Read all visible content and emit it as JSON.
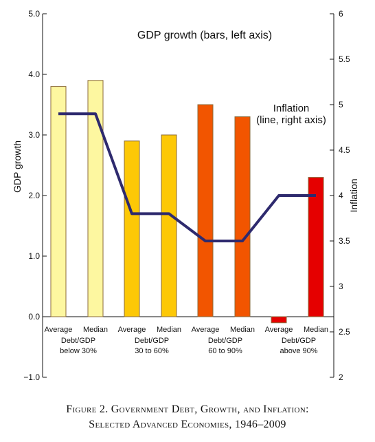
{
  "chart_data": {
    "type": "bar",
    "title": "GDP growth (bars, left axis)",
    "line_label_1": "Inflation",
    "line_label_2": "(line, right axis)",
    "ylabel": "GDP growth",
    "ylabel_right": "Inflation",
    "ylim": [
      -1.0,
      5.0
    ],
    "ylim_right": [
      2,
      6
    ],
    "y_ticks": [
      "5.0",
      "4.0",
      "3.0",
      "2.0",
      "1.0",
      "0.0",
      "−1.0"
    ],
    "y_ticks_right": [
      "6",
      "5.5",
      "5",
      "4.5",
      "4",
      "3.5",
      "3",
      "2.5",
      "2"
    ],
    "categories": [
      "Average",
      "Median",
      "Average",
      "Median",
      "Average",
      "Median",
      "Average",
      "Median"
    ],
    "groups": [
      {
        "line1": "Debt/GDP",
        "line2": "below 30%"
      },
      {
        "line1": "Debt/GDP",
        "line2": "30 to 60%"
      },
      {
        "line1": "Debt/GDP",
        "line2": "60 to 90%"
      },
      {
        "line1": "Debt/GDP",
        "line2": "above 90%"
      }
    ],
    "series": [
      {
        "type": "bar",
        "values": [
          3.8,
          3.9,
          2.9,
          3.0,
          3.5,
          3.3,
          -0.1,
          2.3
        ]
      },
      {
        "type": "line",
        "values": [
          4.9,
          4.9,
          3.8,
          3.8,
          3.5,
          3.5,
          4.0,
          4.0
        ]
      }
    ],
    "bar_colors": [
      "#fdf7a0",
      "#fdf7a0",
      "#fdc806",
      "#fdc806",
      "#f25500",
      "#f25500",
      "#e50000",
      "#e50000"
    ],
    "bar_stroke": "#8a6a3a",
    "line_color": "#2e2a6e"
  },
  "caption": {
    "line1": "Figure 2. Government Debt, Growth, and Inflation:",
    "line2": "Selected Advanced Economies, 1946–2009"
  }
}
